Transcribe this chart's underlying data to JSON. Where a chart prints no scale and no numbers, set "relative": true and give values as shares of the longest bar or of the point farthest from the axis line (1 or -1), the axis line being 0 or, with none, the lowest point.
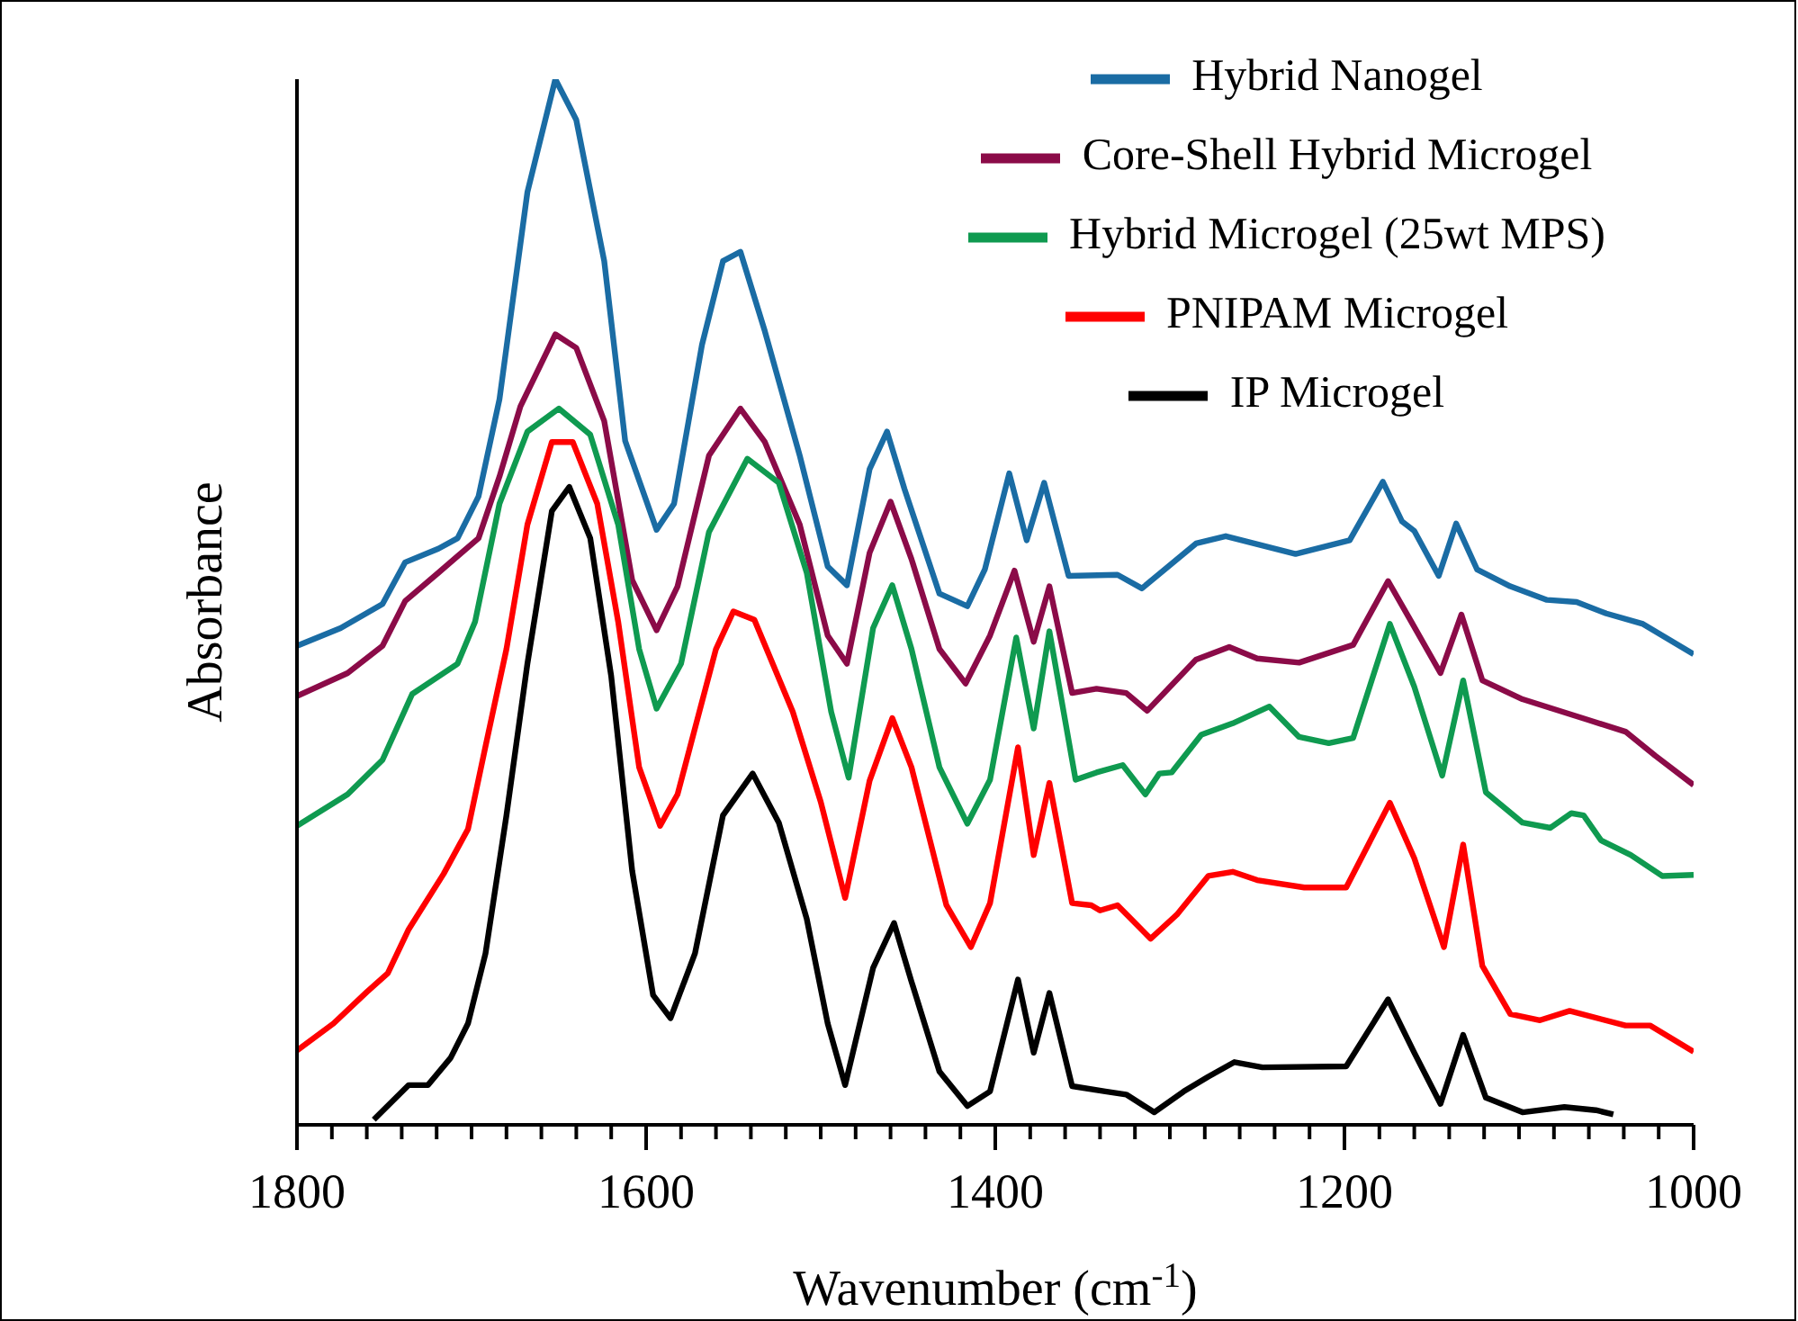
{
  "chart_data": {
    "type": "line",
    "relative": true,
    "xlabel": "Wavenumber (cm$^{-1}$)",
    "ylabel": "Absorbance",
    "xlim": [
      1800,
      1000
    ],
    "xticks": [
      1800,
      {
        "value": 1780,
        "label": null
      },
      {
        "value": 1760,
        "label": null
      },
      {
        "value": 1740,
        "label": null
      },
      {
        "value": 1720,
        "label": null
      },
      {
        "value": 1700,
        "label": null
      },
      {
        "value": 1680,
        "label": null
      },
      {
        "value": 1660,
        "label": null
      },
      {
        "value": 1640,
        "label": null
      },
      {
        "value": 1620,
        "label": null
      },
      1600,
      {
        "value": 1580,
        "label": null
      },
      {
        "value": 1560,
        "label": null
      },
      {
        "value": 1540,
        "label": null
      },
      {
        "value": 1520,
        "label": null
      },
      {
        "value": 1500,
        "label": null
      },
      {
        "value": 1480,
        "label": null
      },
      {
        "value": 1460,
        "label": null
      },
      {
        "value": 1440,
        "label": null
      },
      {
        "value": 1420,
        "label": null
      },
      1400,
      {
        "value": 1380,
        "label": null
      },
      {
        "value": 1360,
        "label": null
      },
      {
        "value": 1340,
        "label": null
      },
      {
        "value": 1320,
        "label": null
      },
      {
        "value": 1300,
        "label": null
      },
      {
        "value": 1280,
        "label": null
      },
      {
        "value": 1260,
        "label": null
      },
      {
        "value": 1240,
        "label": null
      },
      {
        "value": 1220,
        "label": null
      },
      1200,
      {
        "value": 1180,
        "label": null
      },
      {
        "value": 1160,
        "label": null
      },
      {
        "value": 1140,
        "label": null
      },
      {
        "value": 1120,
        "label": null
      },
      {
        "value": 1100,
        "label": null
      },
      {
        "value": 1080,
        "label": null
      },
      {
        "value": 1060,
        "label": null
      },
      {
        "value": 1040,
        "label": null
      },
      {
        "value": 1020,
        "label": null
      },
      1000
    ],
    "legend": "top right",
    "marker": "none",
    "line_style": "solid",
    "grid": false,
    "series": [
      {
        "name": "Hybrid Nanogel",
        "color": "#1a6ca4",
        "x": [
          1800,
          1775,
          1751,
          1738,
          1719,
          1708,
          1696,
          1684,
          1668,
          1652,
          1640,
          1624,
          1612,
          1594,
          1584,
          1568,
          1556,
          1546,
          1532,
          1512,
          1496,
          1485,
          1472,
          1462,
          1452,
          1432,
          1416,
          1406,
          1392,
          1382,
          1372,
          1358,
          1330,
          1316,
          1285,
          1268,
          1228,
          1197,
          1178,
          1167,
          1160,
          1146,
          1136,
          1124,
          1105,
          1084,
          1067,
          1050,
          1029,
          1000
        ],
        "values": [
          0.458,
          0.475,
          0.498,
          0.538,
          0.551,
          0.561,
          0.601,
          0.694,
          0.892,
          1.0,
          0.961,
          0.826,
          0.654,
          0.569,
          0.594,
          0.746,
          0.826,
          0.835,
          0.759,
          0.64,
          0.534,
          0.516,
          0.627,
          0.663,
          0.608,
          0.508,
          0.496,
          0.531,
          0.623,
          0.559,
          0.614,
          0.525,
          0.526,
          0.513,
          0.556,
          0.563,
          0.546,
          0.559,
          0.615,
          0.577,
          0.568,
          0.525,
          0.575,
          0.531,
          0.515,
          0.502,
          0.5,
          0.489,
          0.479,
          0.45
        ]
      },
      {
        "name": "Core-Shell Hybrid Microgel",
        "color": "#8b0b48",
        "x": [
          1800,
          1771,
          1751,
          1738,
          1719,
          1696,
          1684,
          1672,
          1652,
          1640,
          1624,
          1608,
          1594,
          1582,
          1564,
          1546,
          1532,
          1512,
          1496,
          1485,
          1472,
          1460,
          1448,
          1432,
          1417,
          1403,
          1389,
          1378,
          1369,
          1356,
          1342,
          1325,
          1313,
          1285,
          1266,
          1250,
          1226,
          1195,
          1175,
          1162,
          1145,
          1133,
          1121,
          1098,
          1060,
          1039,
          1022,
          1000
        ],
        "values": [
          0.41,
          0.432,
          0.458,
          0.501,
          0.528,
          0.561,
          0.62,
          0.687,
          0.756,
          0.743,
          0.673,
          0.521,
          0.473,
          0.515,
          0.64,
          0.685,
          0.653,
          0.574,
          0.468,
          0.441,
          0.547,
          0.596,
          0.541,
          0.455,
          0.422,
          0.468,
          0.53,
          0.462,
          0.515,
          0.413,
          0.417,
          0.413,
          0.396,
          0.445,
          0.457,
          0.446,
          0.442,
          0.459,
          0.52,
          0.482,
          0.432,
          0.488,
          0.425,
          0.407,
          0.387,
          0.376,
          0.353,
          0.325
        ]
      },
      {
        "name": "Hybrid Microgel (25wt MPS)",
        "color": "#0f9a50",
        "x": [
          1800,
          1771,
          1751,
          1734,
          1708,
          1698,
          1684,
          1668,
          1650,
          1632,
          1616,
          1604,
          1594,
          1580,
          1564,
          1542,
          1524,
          1508,
          1494,
          1484,
          1470,
          1459,
          1448,
          1432,
          1416,
          1403,
          1388,
          1378,
          1369,
          1354,
          1342,
          1327,
          1314,
          1306,
          1299,
          1282,
          1264,
          1243,
          1226,
          1209,
          1195,
          1174,
          1160,
          1144,
          1132,
          1119,
          1098,
          1082,
          1070,
          1063,
          1053,
          1036,
          1018,
          1000
        ],
        "values": [
          0.286,
          0.316,
          0.349,
          0.412,
          0.441,
          0.481,
          0.594,
          0.663,
          0.685,
          0.66,
          0.574,
          0.455,
          0.398,
          0.441,
          0.567,
          0.637,
          0.614,
          0.528,
          0.395,
          0.332,
          0.475,
          0.516,
          0.455,
          0.342,
          0.288,
          0.33,
          0.466,
          0.379,
          0.472,
          0.33,
          0.337,
          0.344,
          0.316,
          0.336,
          0.337,
          0.373,
          0.384,
          0.4,
          0.371,
          0.365,
          0.37,
          0.479,
          0.419,
          0.334,
          0.425,
          0.318,
          0.289,
          0.284,
          0.298,
          0.296,
          0.272,
          0.258,
          0.238,
          0.239
        ]
      },
      {
        "name": "PNIPAM Microgel",
        "color": "#ff0000",
        "x": [
          1800,
          1779,
          1760,
          1748,
          1736,
          1716,
          1702,
          1692,
          1680,
          1668,
          1654,
          1642,
          1628,
          1616,
          1604,
          1592,
          1582,
          1570,
          1560,
          1550,
          1538,
          1516,
          1500,
          1486,
          1472,
          1459,
          1448,
          1428,
          1414,
          1403,
          1387,
          1378,
          1369,
          1356,
          1345,
          1340,
          1330,
          1311,
          1296,
          1278,
          1264,
          1250,
          1223,
          1199,
          1174,
          1160,
          1143,
          1132,
          1121,
          1105,
          1088,
          1071,
          1039,
          1025,
          1000
        ],
        "values": [
          0.071,
          0.097,
          0.127,
          0.145,
          0.187,
          0.24,
          0.283,
          0.362,
          0.455,
          0.574,
          0.653,
          0.653,
          0.594,
          0.481,
          0.342,
          0.286,
          0.316,
          0.392,
          0.455,
          0.491,
          0.483,
          0.395,
          0.309,
          0.217,
          0.329,
          0.389,
          0.342,
          0.21,
          0.17,
          0.212,
          0.361,
          0.258,
          0.327,
          0.212,
          0.21,
          0.205,
          0.21,
          0.178,
          0.201,
          0.238,
          0.242,
          0.234,
          0.227,
          0.227,
          0.308,
          0.255,
          0.17,
          0.268,
          0.152,
          0.106,
          0.1,
          0.109,
          0.095,
          0.095,
          0.07
        ]
      },
      {
        "name": "IP Microgel",
        "color": "#000000",
        "x": [
          1756,
          1736,
          1725,
          1712,
          1702,
          1692,
          1680,
          1668,
          1654,
          1644,
          1632,
          1620,
          1608,
          1596,
          1586,
          1572,
          1556,
          1539,
          1524,
          1508,
          1496,
          1486,
          1470,
          1458,
          1448,
          1432,
          1416,
          1403,
          1387,
          1378,
          1369,
          1356,
          1337,
          1325,
          1309,
          1292,
          1278,
          1263,
          1247,
          1199,
          1175,
          1160,
          1145,
          1132,
          1119,
          1098,
          1074,
          1056,
          1046
        ],
        "values": [
          0.005,
          0.038,
          0.038,
          0.064,
          0.097,
          0.164,
          0.296,
          0.441,
          0.587,
          0.61,
          0.561,
          0.429,
          0.243,
          0.124,
          0.102,
          0.164,
          0.296,
          0.336,
          0.289,
          0.197,
          0.097,
          0.038,
          0.15,
          0.193,
          0.137,
          0.051,
          0.018,
          0.032,
          0.139,
          0.069,
          0.126,
          0.037,
          0.032,
          0.029,
          0.012,
          0.032,
          0.046,
          0.06,
          0.055,
          0.056,
          0.12,
          0.069,
          0.02,
          0.086,
          0.026,
          0.012,
          0.017,
          0.014,
          0.01
        ]
      }
    ]
  }
}
